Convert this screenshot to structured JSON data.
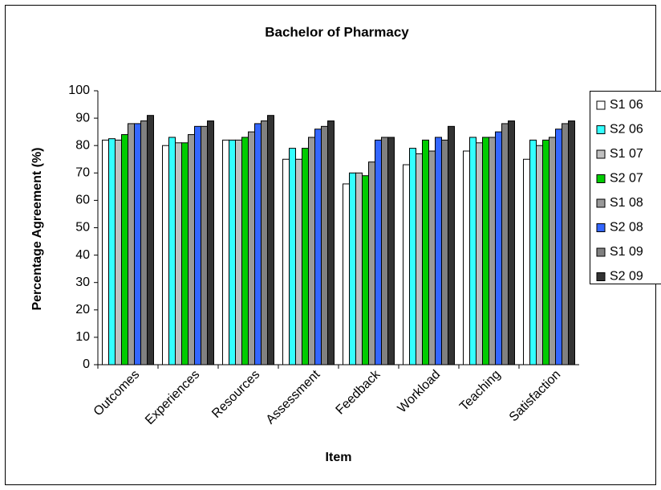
{
  "chart_data": {
    "type": "bar",
    "title": "Bachelor of Pharmacy",
    "x_label": "Item",
    "y_label": "Percentage Agreement (%)",
    "categories": [
      "Outcomes",
      "Experiences",
      "Resources",
      "Assessment",
      "Feedback",
      "Workload",
      "Teaching",
      "Satisfaction"
    ],
    "series": [
      {
        "name": "S1 06",
        "color": "#ffffff",
        "values": [
          82,
          80,
          82,
          75,
          66,
          73,
          78,
          75
        ]
      },
      {
        "name": "S2 06",
        "color": "#33ffff",
        "values": [
          82.5,
          83,
          82,
          79,
          70,
          79,
          83,
          82
        ]
      },
      {
        "name": "S1 07",
        "color": "#c0c0c0",
        "values": [
          82,
          81,
          82,
          75,
          70,
          77,
          81,
          80
        ]
      },
      {
        "name": "S2 07",
        "color": "#00cc00",
        "values": [
          84,
          81,
          83,
          79,
          69,
          82,
          83,
          82
        ]
      },
      {
        "name": "S1 08",
        "color": "#999999",
        "values": [
          88,
          84,
          85,
          83,
          74,
          78,
          83,
          83
        ]
      },
      {
        "name": "S2 08",
        "color": "#3366ff",
        "values": [
          88,
          87,
          88,
          86,
          82,
          83,
          85,
          86
        ]
      },
      {
        "name": "S1 09",
        "color": "#808080",
        "values": [
          89,
          87,
          89,
          87,
          83,
          82,
          88,
          88
        ]
      },
      {
        "name": "S2 09",
        "color": "#333333",
        "values": [
          91,
          89,
          91,
          89,
          83,
          87,
          89,
          89
        ]
      }
    ],
    "ylim": [
      0,
      100
    ],
    "yticks": [
      0,
      10,
      20,
      30,
      40,
      50,
      60,
      70,
      80,
      90,
      100
    ],
    "grid": false,
    "legend": "right"
  }
}
